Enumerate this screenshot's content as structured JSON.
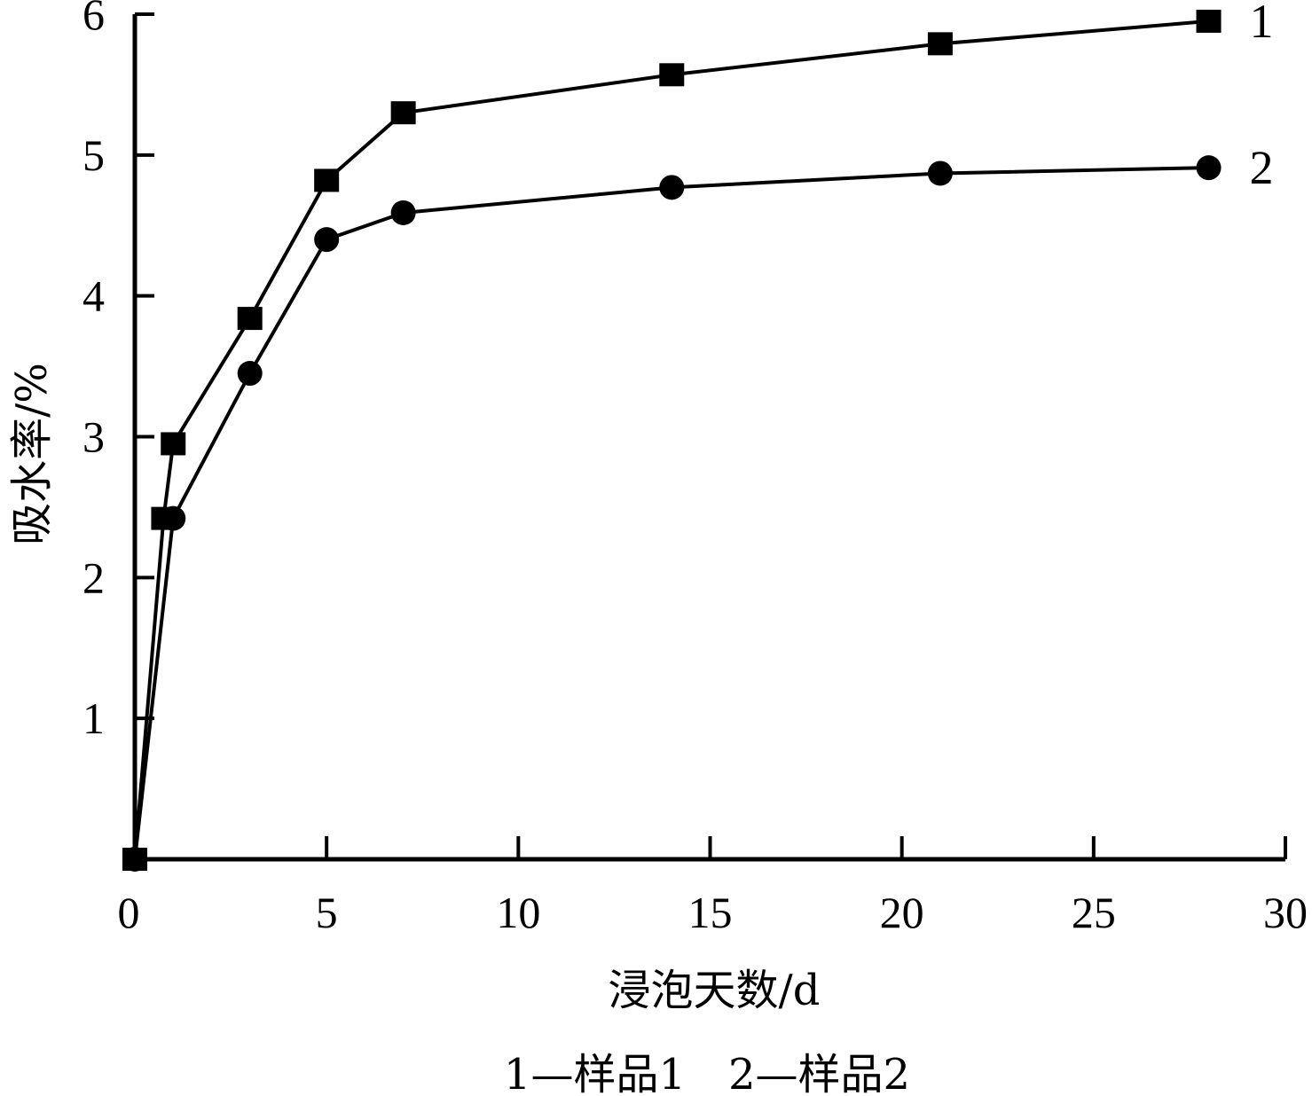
{
  "chart_data": {
    "type": "line",
    "title": "",
    "xlabel": "浸泡天数/d",
    "ylabel": "吸水率/%",
    "xlim": [
      0,
      30
    ],
    "ylim": [
      0,
      6
    ],
    "x_ticks": [
      0,
      5,
      10,
      15,
      20,
      25,
      30
    ],
    "x_tick_labels": [
      "0",
      "5",
      "10",
      "15",
      "20",
      "25",
      "30"
    ],
    "y_ticks": [
      1,
      2,
      3,
      4,
      5,
      6
    ],
    "y_tick_labels": [
      "1",
      "2",
      "3",
      "4",
      "5",
      "6"
    ],
    "grid": false,
    "series": [
      {
        "end_label": "1",
        "marker": "square",
        "x": [
          0,
          0.75,
          1,
          3,
          5,
          7,
          14,
          21,
          28
        ],
        "y": [
          0,
          2.42,
          2.95,
          3.84,
          4.82,
          5.3,
          5.57,
          5.79,
          5.95
        ]
      },
      {
        "end_label": "2",
        "marker": "circle",
        "x": [
          0,
          1,
          3,
          5,
          7,
          14,
          21,
          28
        ],
        "y": [
          0,
          2.42,
          3.45,
          4.4,
          4.59,
          4.77,
          4.87,
          4.91
        ]
      }
    ],
    "caption": "1—样品1　2—样品2"
  }
}
